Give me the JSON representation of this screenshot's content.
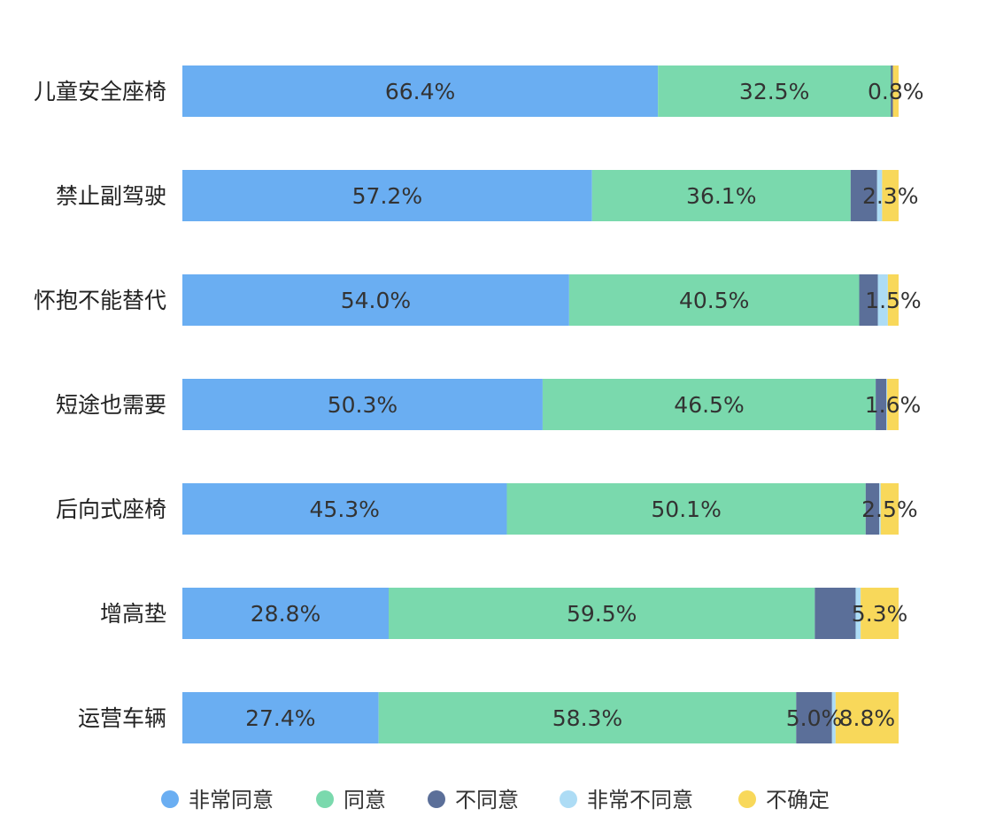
{
  "chart_data": {
    "type": "bar",
    "orientation": "horizontal",
    "stacked": true,
    "title": "",
    "xlabel": "",
    "ylabel": "",
    "xlim": [
      0,
      100
    ],
    "grid": false,
    "legend_position": "bottom",
    "categories": [
      "儿童安全座椅",
      "禁止副驾驶",
      "怀抱不能替代",
      "短途也需要",
      "后向式座椅",
      "增高垫",
      "运营车辆"
    ],
    "series": [
      {
        "name": "非常同意",
        "color": "#6aaef2",
        "values": [
          66.4,
          57.2,
          54.0,
          50.3,
          45.3,
          28.8,
          27.4
        ],
        "labels": [
          "66.4%",
          "57.2%",
          "54.0%",
          "50.3%",
          "45.3%",
          "28.8%",
          "27.4%"
        ]
      },
      {
        "name": "同意",
        "color": "#7ad9ad",
        "values": [
          32.5,
          36.1,
          40.5,
          46.5,
          50.1,
          59.5,
          58.3
        ],
        "labels": [
          "32.5%",
          "36.1%",
          "40.5%",
          "46.5%",
          "50.1%",
          "59.5%",
          "58.3%"
        ]
      },
      {
        "name": "不同意",
        "color": "#5b6f99",
        "values": [
          0.3,
          3.7,
          2.6,
          1.5,
          1.9,
          5.7,
          5.0
        ],
        "labels": [
          null,
          null,
          null,
          null,
          null,
          null,
          "5.0%"
        ]
      },
      {
        "name": "非常不同意",
        "color": "#addcf5",
        "values": [
          0.0,
          0.7,
          1.4,
          0.1,
          0.2,
          0.7,
          0.5
        ],
        "labels": [
          null,
          null,
          null,
          null,
          null,
          null,
          null
        ]
      },
      {
        "name": "不确定",
        "color": "#f8d85a",
        "values": [
          0.8,
          2.3,
          1.5,
          1.6,
          2.5,
          5.3,
          8.8
        ],
        "labels": [
          "0.8%",
          "2.3%",
          "1.5%",
          "1.6%",
          "2.5%",
          "5.3%",
          "8.8%"
        ]
      }
    ]
  }
}
